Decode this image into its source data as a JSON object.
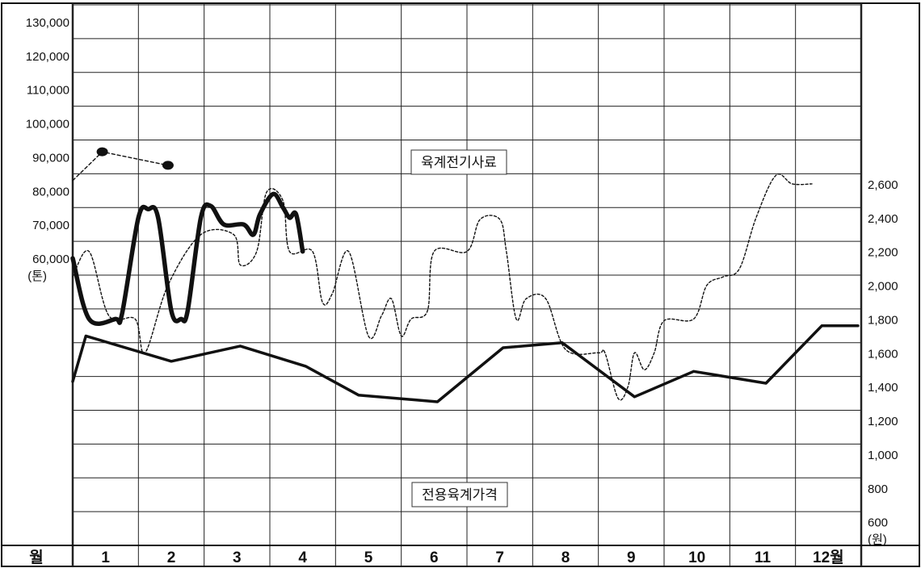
{
  "chart_data": {
    "type": "line",
    "left_axis": {
      "unit_label": "(톤)",
      "ticks": [
        "130,000",
        "120,000",
        "110,000",
        "100,000",
        "90,000",
        "80,000",
        "70,000",
        "60,000"
      ],
      "tick_values": [
        130000,
        120000,
        110000,
        100000,
        90000,
        80000,
        70000,
        60000
      ]
    },
    "right_axis": {
      "unit_label": "(원)",
      "ticks": [
        "2,600",
        "2,400",
        "2,200",
        "2,000",
        "1,800",
        "1,600",
        "1,400",
        "1,200",
        "1,000",
        "800",
        "600"
      ],
      "tick_values": [
        2600,
        2400,
        2200,
        2000,
        1800,
        1600,
        1400,
        1200,
        1000,
        800,
        600
      ],
      "ylim": [
        500,
        2800
      ]
    },
    "x_axis": {
      "header_label": "월",
      "months": [
        "1",
        "2",
        "3",
        "4",
        "5",
        "6",
        "7",
        "8",
        "9",
        "10",
        "11",
        "12월"
      ]
    },
    "annotations": {
      "feed_label": "육계전기사료",
      "price_label": "전용육계가격"
    },
    "series": [
      {
        "key": "feed_prev",
        "axis": "left",
        "style": "dashed-markers",
        "points": [
          [
            0.0,
            83000
          ],
          [
            0.45,
            91500
          ],
          [
            1.45,
            87500
          ]
        ]
      },
      {
        "key": "feed_current",
        "axis": "left",
        "style": "thick-smooth",
        "points": [
          [
            0.0,
            60000
          ],
          [
            0.25,
            1800
          ],
          [
            0.65,
            1800
          ],
          [
            0.75,
            1830
          ],
          [
            1.0,
            2400
          ],
          [
            1.15,
            2450
          ],
          [
            1.3,
            2400
          ],
          [
            1.5,
            1850
          ],
          [
            1.65,
            1800
          ],
          [
            1.75,
            1850
          ],
          [
            1.95,
            2400
          ],
          [
            2.1,
            2470
          ],
          [
            2.3,
            70000
          ],
          [
            2.6,
            70000
          ],
          [
            2.75,
            67000
          ],
          [
            2.85,
            2420
          ],
          [
            3.05,
            79000
          ],
          [
            3.2,
            75000
          ],
          [
            3.3,
            2400
          ],
          [
            3.4,
            2420
          ],
          [
            3.5,
            62000
          ]
        ],
        "note": "mixed-axis values: numbers < 3000 are read on the right axis scale, others on the left axis scale"
      },
      {
        "key": "price_daily",
        "axis": "right",
        "style": "dotted",
        "points": [
          [
            0.0,
            2050
          ],
          [
            0.25,
            2200
          ],
          [
            0.55,
            1820
          ],
          [
            0.95,
            1800
          ],
          [
            1.1,
            1600
          ],
          [
            1.45,
            2000
          ],
          [
            1.95,
            2300
          ],
          [
            2.45,
            2300
          ],
          [
            2.55,
            2120
          ],
          [
            2.8,
            2200
          ],
          [
            2.95,
            2550
          ],
          [
            3.2,
            2500
          ],
          [
            3.3,
            2200
          ],
          [
            3.65,
            2200
          ],
          [
            3.8,
            1900
          ],
          [
            3.95,
            1950
          ],
          [
            4.2,
            2200
          ],
          [
            4.5,
            1700
          ],
          [
            4.7,
            1820
          ],
          [
            4.85,
            1920
          ],
          [
            5.0,
            1700
          ],
          [
            5.15,
            1800
          ],
          [
            5.4,
            1850
          ],
          [
            5.5,
            2200
          ],
          [
            6.0,
            2200
          ],
          [
            6.2,
            2390
          ],
          [
            6.5,
            2390
          ],
          [
            6.6,
            2200
          ],
          [
            6.75,
            1800
          ],
          [
            6.9,
            1920
          ],
          [
            7.2,
            1920
          ],
          [
            7.5,
            1620
          ],
          [
            8.0,
            1600
          ],
          [
            8.1,
            1600
          ],
          [
            8.3,
            1330
          ],
          [
            8.45,
            1400
          ],
          [
            8.55,
            1600
          ],
          [
            8.7,
            1500
          ],
          [
            8.85,
            1600
          ],
          [
            9.0,
            1790
          ],
          [
            9.45,
            1800
          ],
          [
            9.65,
            2000
          ],
          [
            9.9,
            2050
          ],
          [
            10.15,
            2100
          ],
          [
            10.4,
            2400
          ],
          [
            10.7,
            2650
          ],
          [
            10.95,
            2600
          ],
          [
            11.25,
            2600
          ]
        ],
        "note": "values above 2,600 extend into the left-axis zone (peaks near 55,000 and 80,000 on the left scale)"
      },
      {
        "key": "price_avg",
        "axis": "right",
        "style": "solid",
        "points": [
          [
            0.0,
            1430
          ],
          [
            0.2,
            1700
          ],
          [
            1.5,
            1550
          ],
          [
            2.55,
            1640
          ],
          [
            3.55,
            1520
          ],
          [
            4.35,
            1350
          ],
          [
            5.55,
            1310
          ],
          [
            6.55,
            1630
          ],
          [
            7.45,
            1660
          ],
          [
            8.55,
            1340
          ],
          [
            9.45,
            1490
          ],
          [
            10.55,
            1420
          ],
          [
            11.4,
            1760
          ],
          [
            11.95,
            1760
          ]
        ]
      }
    ]
  }
}
